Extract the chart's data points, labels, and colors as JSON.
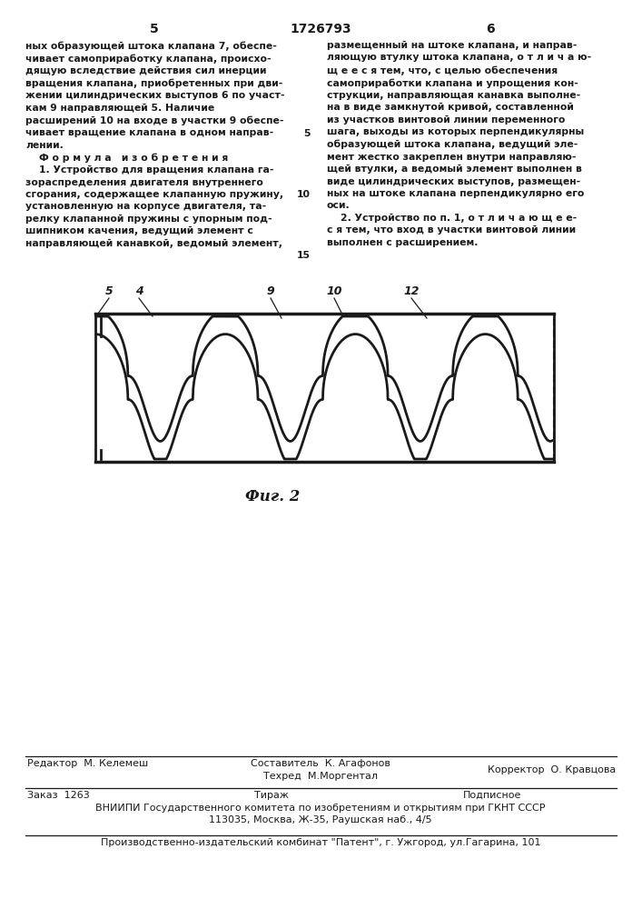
{
  "page_num_left": "5",
  "page_num_center": "1726793",
  "page_num_right": "6",
  "text_left": "ных образующей штока клапана 7, обеспе-\nчивает самоприработку клапана, происхо-\nдящую вследствие действия сил инерции\nвращения клапана, приобретенных при дви-\nжении цилиндрических выступов 6 по участ-\nкам 9 направляющей 5. Наличие\nрасширений 10 на входе в участки 9 обеспе-\nчивает вращение клапана в одном направ-\nлении.\n    Ф о р м у л а   и з о б р е т е н и я\n    1. Устройство для вращения клапана га-\nзораспределения двигателя внутреннего\nсгорания, содержащее клапанную пружину,\nустановленную на корпусе двигателя, та-\nрелку клапанной пружины с упорным под-\nшипником качения, ведущий элемент с\nнаправляющей канавкой, ведомый элемент,",
  "text_right": "размещенный на штоке клапана, и направ-\nляющую втулку штока клапана, о т л и ч а ю-\nщ е е с я тем, что, с целью обеспечения\nсамоприработки клапана и упрощения кон-\nструкции, направляющая канавка выполне-\nна в виде замкнутой кривой, составленной\nиз участков винтовой линии переменного\nшага, выходы из которых перпендикулярны\nобразующей штока клапана, ведущий эле-\nмент жестко закреплен внутри направляю-\nщей втулки, а ведомый элемент выполнен в\nвиде цилиндрических выступов, размещен-\nных на штоке клапана перпендикулярно его\nоси.\n    2. Устройство по п. 1, о т л и ч а ю щ е е-\nс я тем, что вход в участки винтовой линии\nвыполнен с расширением.",
  "fig_caption": "Фиг. 2",
  "footer_editor": "Редактор  М. Келемеш",
  "footer_sostavitel": "Составитель  К. Агафонов",
  "footer_tekhred": "Техред  М.Моргентал",
  "footer_korrektor": "Корректор  О. Кравцова",
  "footer_zakaz": "Заказ  1263",
  "footer_tirazh": "Тираж",
  "footer_podpisnoe": "Подписное",
  "footer_vnipi": "ВНИИПИ Государственного комитета по изобретениям и открытиям при ГКНТ СССР",
  "footer_address": "113035, Москва, Ж-35, Раушская наб., 4/5",
  "footer_kombinat": "Производственно-издательский комбинат \"Патент\", г. Ужгород, ул.Гагарина, 101",
  "bg_color": "#ffffff",
  "text_color": "#1a1a1a"
}
